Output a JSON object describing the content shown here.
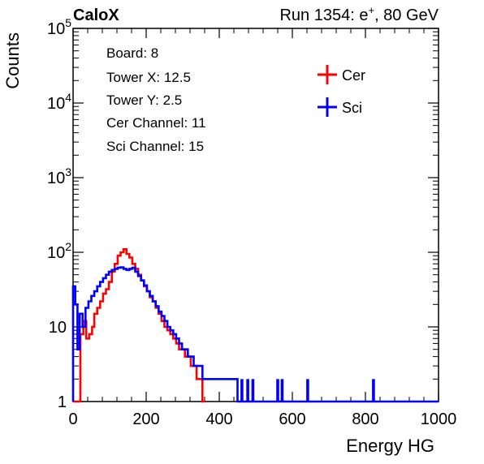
{
  "header": {
    "left_label": "CaloX",
    "run_prefix": "Run 1354: e",
    "run_sup": "+",
    "run_suffix": ", 80 GeV"
  },
  "info_box": {
    "lines": [
      "Board: 8",
      "Tower X: 12.5",
      "Tower Y: 2.5",
      "Cer Channel: 11",
      "Sci Channel: 15"
    ]
  },
  "colors": {
    "cer": "#ff0000",
    "sci": "#0000ff"
  },
  "chart_data": {
    "type": "histogram",
    "xlabel": "Energy HG",
    "ylabel": "Counts",
    "xlim": [
      0,
      1000
    ],
    "ylim": [
      1,
      100000
    ],
    "yscale": "log",
    "grid": false,
    "legend_position": "top-right",
    "x_ticks": [
      "0",
      "200",
      "400",
      "600",
      "800",
      "1000"
    ],
    "y_ticks": [
      {
        "value": 1,
        "base": "1",
        "exp": ""
      },
      {
        "value": 10,
        "base": "10",
        "exp": ""
      },
      {
        "value": 100,
        "base": "10",
        "exp": "2"
      },
      {
        "value": 1000,
        "base": "10",
        "exp": "3"
      },
      {
        "value": 10000,
        "base": "10",
        "exp": "4"
      },
      {
        "value": 100000,
        "base": "10",
        "exp": "5"
      }
    ],
    "series": [
      {
        "name": "Cer",
        "color": "#ff0000",
        "points": [
          [
            0,
            1
          ],
          [
            10,
            1
          ],
          [
            16,
            1
          ],
          [
            20,
            8
          ],
          [
            28,
            12
          ],
          [
            36,
            7
          ],
          [
            44,
            8
          ],
          [
            52,
            10
          ],
          [
            58,
            15
          ],
          [
            66,
            18
          ],
          [
            74,
            22
          ],
          [
            82,
            28
          ],
          [
            90,
            32
          ],
          [
            98,
            40
          ],
          [
            106,
            55
          ],
          [
            114,
            70
          ],
          [
            122,
            90
          ],
          [
            130,
            100
          ],
          [
            138,
            110
          ],
          [
            146,
            95
          ],
          [
            154,
            85
          ],
          [
            162,
            70
          ],
          [
            170,
            60
          ],
          [
            178,
            50
          ],
          [
            186,
            42
          ],
          [
            194,
            35
          ],
          [
            202,
            30
          ],
          [
            210,
            25
          ],
          [
            218,
            22
          ],
          [
            226,
            18
          ],
          [
            234,
            15
          ],
          [
            242,
            12
          ],
          [
            250,
            10
          ],
          [
            258,
            9
          ],
          [
            266,
            8
          ],
          [
            274,
            7
          ],
          [
            282,
            6
          ],
          [
            290,
            5
          ],
          [
            298,
            5
          ],
          [
            306,
            4
          ],
          [
            314,
            4
          ],
          [
            322,
            3
          ],
          [
            330,
            3
          ],
          [
            338,
            2
          ],
          [
            346,
            2
          ],
          [
            354,
            1
          ]
        ]
      },
      {
        "name": "Sci",
        "color": "#0000ff",
        "points": [
          [
            0,
            35
          ],
          [
            6,
            20
          ],
          [
            12,
            5
          ],
          [
            18,
            15
          ],
          [
            26,
            10
          ],
          [
            34,
            18
          ],
          [
            42,
            22
          ],
          [
            50,
            26
          ],
          [
            58,
            30
          ],
          [
            66,
            35
          ],
          [
            74,
            40
          ],
          [
            82,
            45
          ],
          [
            90,
            50
          ],
          [
            98,
            55
          ],
          [
            106,
            58
          ],
          [
            114,
            60
          ],
          [
            122,
            62
          ],
          [
            130,
            63
          ],
          [
            138,
            60
          ],
          [
            146,
            58
          ],
          [
            154,
            60
          ],
          [
            162,
            62
          ],
          [
            170,
            55
          ],
          [
            178,
            48
          ],
          [
            186,
            42
          ],
          [
            194,
            36
          ],
          [
            202,
            30
          ],
          [
            210,
            26
          ],
          [
            218,
            22
          ],
          [
            226,
            19
          ],
          [
            234,
            16
          ],
          [
            242,
            14
          ],
          [
            250,
            12
          ],
          [
            258,
            10
          ],
          [
            266,
            9
          ],
          [
            274,
            8
          ],
          [
            282,
            7
          ],
          [
            290,
            6
          ],
          [
            298,
            5
          ],
          [
            306,
            5
          ],
          [
            314,
            4
          ],
          [
            322,
            4
          ],
          [
            330,
            3
          ],
          [
            338,
            3
          ],
          [
            346,
            3
          ],
          [
            354,
            2
          ],
          [
            362,
            2
          ],
          [
            370,
            2
          ],
          [
            378,
            2
          ],
          [
            386,
            2
          ],
          [
            394,
            2
          ],
          [
            402,
            2
          ],
          [
            410,
            2
          ],
          [
            418,
            2
          ],
          [
            426,
            2
          ],
          [
            434,
            2
          ],
          [
            442,
            2
          ],
          [
            450,
            1
          ]
        ],
        "outliers": [
          [
            462,
            2
          ],
          [
            478,
            2
          ],
          [
            492,
            2
          ],
          [
            560,
            2
          ],
          [
            572,
            2
          ],
          [
            642,
            2
          ],
          [
            822,
            2
          ]
        ]
      }
    ]
  }
}
